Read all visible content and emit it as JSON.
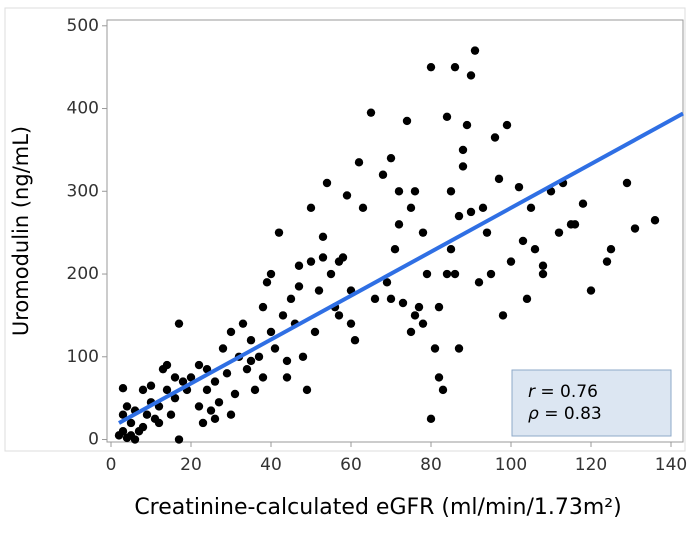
{
  "chart_data": {
    "type": "scatter",
    "ylabel": "Uromodulin (ng/mL)",
    "xlabel": "Creatinine-calculated eGFR (ml/min/1.73m²)",
    "xlim": [
      -1,
      143
    ],
    "ylim": [
      -3,
      507
    ],
    "xticks": [
      0,
      20,
      40,
      60,
      80,
      100,
      120,
      140
    ],
    "yticks": [
      0,
      100,
      200,
      300,
      400,
      500
    ],
    "color": "#000000",
    "x": [
      2,
      3,
      4,
      3,
      4,
      3,
      5,
      6,
      7,
      8,
      9,
      10,
      11,
      12,
      13,
      14,
      15,
      16,
      17,
      17,
      18,
      19,
      20,
      5,
      6,
      8,
      10,
      12,
      14,
      16,
      22,
      22,
      23,
      24,
      25,
      26,
      27,
      28,
      29,
      30,
      31,
      32,
      33,
      34,
      35,
      36,
      37,
      38,
      39,
      40,
      40,
      26,
      30,
      24,
      35,
      38,
      41,
      42,
      43,
      44,
      45,
      46,
      47,
      48,
      49,
      50,
      50,
      51,
      52,
      53,
      54,
      55,
      56,
      57,
      58,
      59,
      60,
      61,
      62,
      63,
      65,
      44,
      47,
      53,
      57,
      60,
      66,
      68,
      69,
      70,
      71,
      72,
      73,
      74,
      75,
      75,
      76,
      77,
      78,
      79,
      80,
      80,
      81,
      82,
      82,
      83,
      84,
      85,
      85,
      86,
      87,
      87,
      88,
      88,
      89,
      90,
      91,
      92,
      93,
      94,
      95,
      96,
      97,
      98,
      99,
      100,
      70,
      72,
      78,
      84,
      90,
      76,
      86,
      102,
      103,
      104,
      105,
      106,
      108,
      110,
      112,
      113,
      116,
      118,
      120,
      124,
      125,
      129,
      131,
      136,
      108,
      115
    ],
    "values": [
      5,
      10,
      2,
      30,
      40,
      62,
      20,
      35,
      10,
      60,
      30,
      45,
      25,
      40,
      85,
      60,
      30,
      50,
      0,
      140,
      70,
      60,
      75,
      5,
      0,
      15,
      65,
      20,
      90,
      75,
      40,
      90,
      20,
      60,
      35,
      70,
      45,
      110,
      80,
      130,
      55,
      100,
      140,
      85,
      120,
      60,
      100,
      160,
      190,
      200,
      130,
      25,
      30,
      85,
      95,
      75,
      110,
      250,
      150,
      95,
      170,
      140,
      210,
      100,
      60,
      215,
      280,
      130,
      180,
      245,
      310,
      200,
      160,
      150,
      220,
      295,
      180,
      120,
      335,
      280,
      395,
      75,
      185,
      220,
      215,
      140,
      170,
      320,
      190,
      340,
      230,
      300,
      165,
      385,
      130,
      280,
      300,
      160,
      250,
      200,
      450,
      25,
      110,
      75,
      160,
      60,
      390,
      300,
      230,
      450,
      110,
      270,
      330,
      350,
      380,
      440,
      470,
      190,
      280,
      250,
      200,
      365,
      315,
      150,
      380,
      215,
      170,
      260,
      140,
      200,
      275,
      150,
      200,
      305,
      240,
      170,
      280,
      230,
      200,
      300,
      250,
      310,
      260,
      285,
      180,
      215,
      230,
      310,
      255,
      265,
      210,
      260
    ],
    "fit": {
      "x": [
        2,
        143
      ],
      "values": [
        20,
        394
      ],
      "color": "#2f6fe4"
    },
    "stats": [
      {
        "symbol": "r",
        "text": "= 0.76"
      },
      {
        "symbol": "ρ",
        "text": "= 0.83"
      }
    ]
  }
}
